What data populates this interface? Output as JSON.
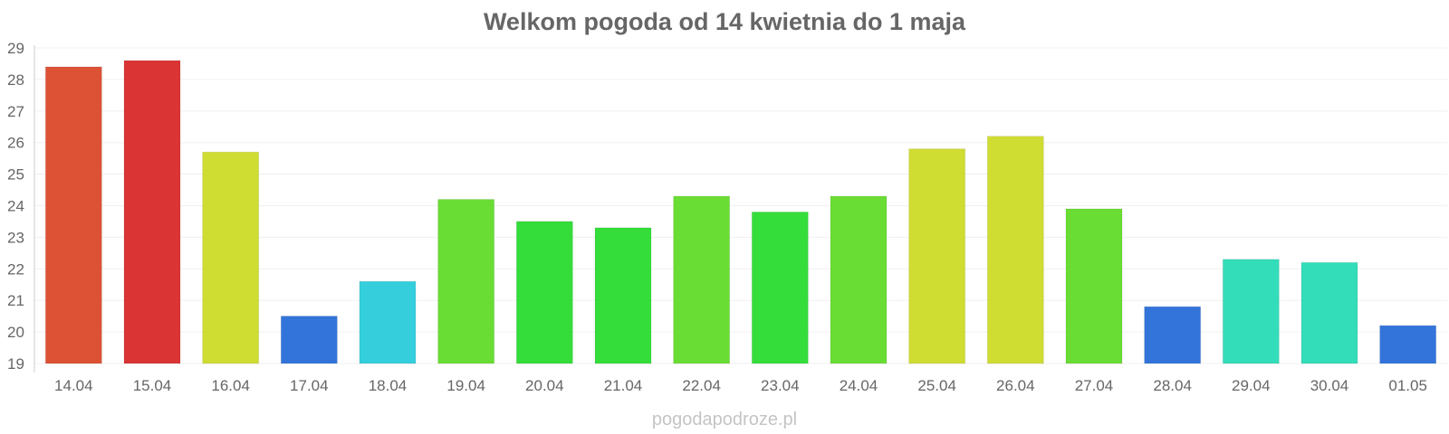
{
  "chart_data": {
    "type": "bar",
    "title": "Welkom pogoda od 14 kwietnia do 1 maja",
    "xlabel": "",
    "ylabel": "",
    "ylim": [
      19,
      29
    ],
    "yticks": [
      19,
      20,
      21,
      22,
      23,
      24,
      25,
      26,
      27,
      28,
      29
    ],
    "grid": true,
    "categories": [
      "14.04",
      "15.04",
      "16.04",
      "17.04",
      "18.04",
      "19.04",
      "20.04",
      "21.04",
      "22.04",
      "23.04",
      "24.04",
      "25.04",
      "26.04",
      "27.04",
      "28.04",
      "29.04",
      "30.04",
      "01.05"
    ],
    "values": [
      28.4,
      28.6,
      25.7,
      20.5,
      21.6,
      24.2,
      23.5,
      23.3,
      24.3,
      23.8,
      24.3,
      25.8,
      26.2,
      23.9,
      20.8,
      22.3,
      22.2,
      20.2
    ],
    "colors": [
      "#dd5235",
      "#db3434",
      "#cfdd33",
      "#3374db",
      "#34cedd",
      "#6add34",
      "#34dd3a",
      "#34dd3a",
      "#6add34",
      "#34dd3a",
      "#6add34",
      "#cfdd33",
      "#cfdd33",
      "#6add34",
      "#3374db",
      "#34ddba",
      "#34ddba",
      "#3374db"
    ]
  },
  "watermark": "pogodapodroze.pl"
}
